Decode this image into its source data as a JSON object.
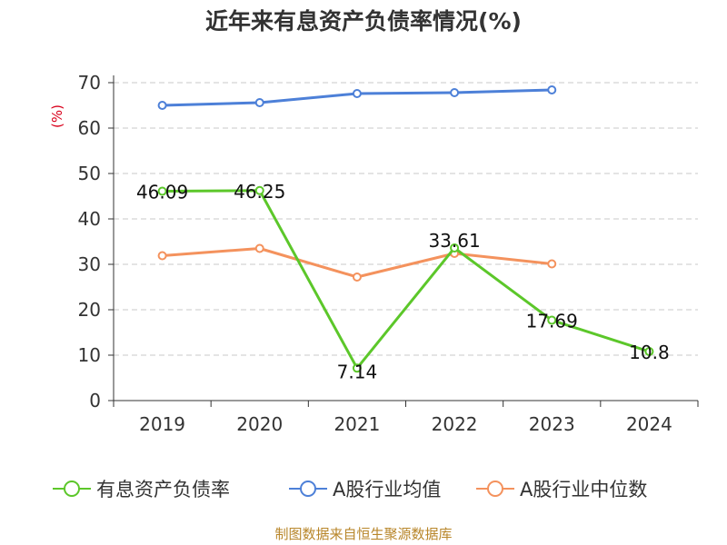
{
  "title": "近年来有息资产负债率情况(%)",
  "source_note": "制图数据来自恒生聚源数据库",
  "chart_data": {
    "type": "line",
    "title": "近年来有息资产负债率情况(%)",
    "xlabel": "",
    "ylabel": "(%)",
    "categories": [
      "2019",
      "2020",
      "2021",
      "2022",
      "2023",
      "2024"
    ],
    "ylim": [
      0,
      70
    ],
    "yticks": [
      0,
      10,
      20,
      30,
      40,
      50,
      60,
      70
    ],
    "grid": true,
    "legend_position": "bottom",
    "series": [
      {
        "name": "有息资产负债率",
        "color": "#5cc72a",
        "values": [
          46.09,
          46.25,
          7.14,
          33.61,
          17.69,
          10.8
        ],
        "labels": [
          "46.09",
          "46.25",
          "7.14",
          "33.61",
          "17.69",
          "10.8"
        ]
      },
      {
        "name": "A股行业均值",
        "color": "#4d80d8",
        "values": [
          65.0,
          65.6,
          67.6,
          67.8,
          68.4,
          null
        ]
      },
      {
        "name": "A股行业中位数",
        "color": "#f4925d",
        "values": [
          31.9,
          33.5,
          27.2,
          32.4,
          30.1,
          null
        ]
      }
    ]
  }
}
